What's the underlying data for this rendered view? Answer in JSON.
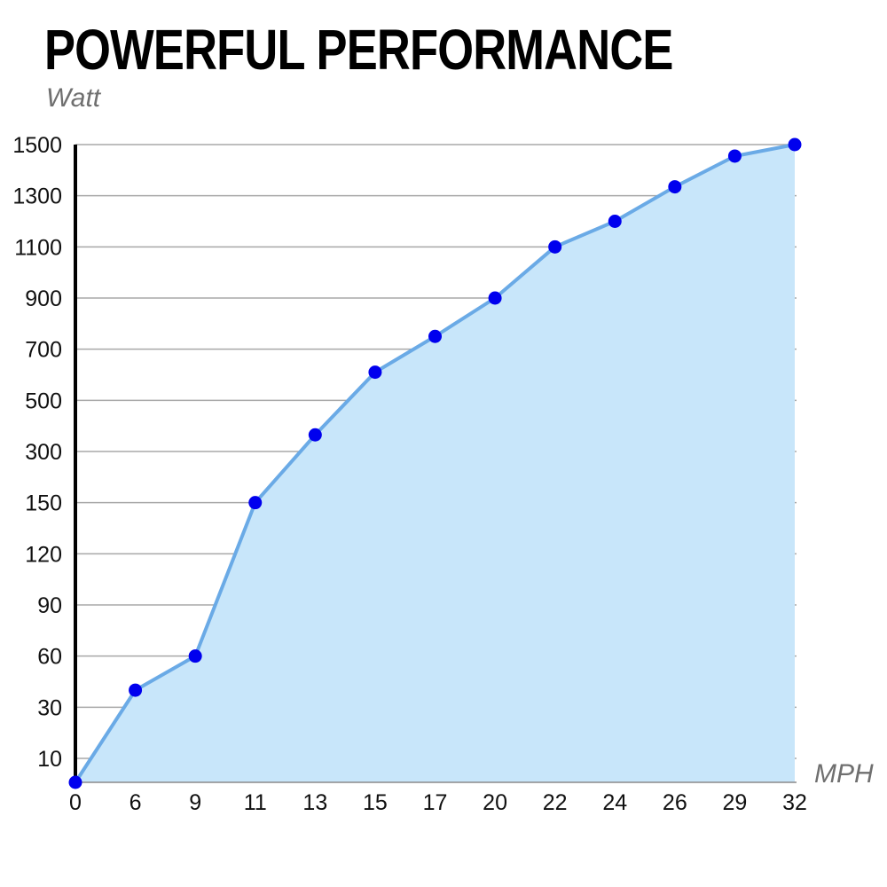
{
  "chart_data": {
    "type": "area",
    "title": "POWERFUL PERFORMANCE",
    "ylabel": "Watt",
    "xlabel": "MPH",
    "categories": [
      "0",
      "6",
      "9",
      "11",
      "13",
      "15",
      "17",
      "20",
      "22",
      "24",
      "26",
      "29",
      "32"
    ],
    "values": [
      0,
      40,
      60,
      150,
      365,
      610,
      750,
      900,
      1100,
      1200,
      1335,
      1455,
      1500
    ],
    "y_ticks": [
      10,
      30,
      60,
      90,
      120,
      150,
      300,
      500,
      700,
      900,
      1100,
      1300,
      1500
    ],
    "y_scale": "non-uniform (evenly spaced tick labels)",
    "ylim": [
      0,
      1500
    ],
    "grid": true,
    "colors": {
      "fill": "#c8e6fa",
      "line": "#6aaae6",
      "marker": "#0000ee",
      "grid": "#a8a8a8",
      "axis": "#000000"
    }
  }
}
